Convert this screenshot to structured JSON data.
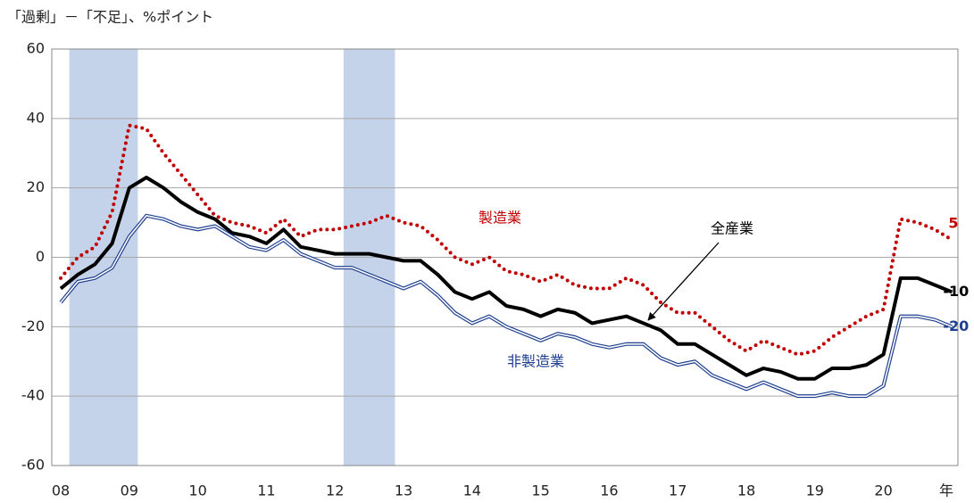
{
  "chart_data": {
    "type": "line",
    "axis_title": "「過剰」－「不足」、%ポイント",
    "x_unit": "年",
    "categories": [
      "08",
      null,
      null,
      null,
      "09",
      null,
      null,
      null,
      "10",
      null,
      null,
      null,
      "11",
      null,
      null,
      null,
      "12",
      null,
      null,
      null,
      "13",
      null,
      null,
      null,
      "14",
      null,
      null,
      null,
      "15",
      null,
      null,
      null,
      "16",
      null,
      null,
      null,
      "17",
      null,
      null,
      null,
      "18",
      null,
      null,
      null,
      "19",
      null,
      null,
      null,
      "20",
      null,
      null,
      null,
      null
    ],
    "shading": [
      [
        0.5,
        4.5
      ],
      [
        16.5,
        19.5
      ]
    ],
    "shading_color": "#c5d3ea",
    "series": [
      {
        "name": "製造業",
        "color": "#c00000",
        "style": "dotted",
        "values": [
          -6,
          0,
          3,
          13,
          38,
          37,
          30,
          24,
          18,
          12,
          10,
          9,
          7,
          11,
          6,
          8,
          8,
          9,
          10,
          12,
          10,
          9,
          5,
          0,
          -2,
          0,
          -4,
          -5,
          -7,
          -5,
          -8,
          -9,
          -9,
          -6,
          -8,
          -13,
          -16,
          -16,
          -20,
          -24,
          -27,
          -24,
          -26,
          -28,
          -27,
          -23,
          -20,
          -17,
          -15,
          11,
          10,
          8,
          5
        ]
      },
      {
        "name": "全産業",
        "color": "#000000",
        "style": "solid",
        "values": [
          -9,
          -5,
          -2,
          4,
          20,
          23,
          20,
          16,
          13,
          11,
          7,
          6,
          4,
          8,
          3,
          2,
          1,
          1,
          1,
          0,
          -1,
          -1,
          -5,
          -10,
          -12,
          -10,
          -14,
          -15,
          -17,
          -15,
          -16,
          -19,
          -18,
          -17,
          -19,
          -21,
          -25,
          -25,
          -28,
          -31,
          -34,
          -32,
          -33,
          -35,
          -35,
          -32,
          -32,
          -31,
          -28,
          -6,
          -6,
          -8,
          -10
        ]
      },
      {
        "name": "非製造業",
        "color": "#1f3f8f",
        "style": "double",
        "values": [
          -13,
          -7,
          -6,
          -3,
          6,
          12,
          11,
          9,
          8,
          9,
          6,
          3,
          2,
          5,
          1,
          -1,
          -3,
          -3,
          -5,
          -7,
          -9,
          -7,
          -11,
          -16,
          -19,
          -17,
          -20,
          -22,
          -24,
          -22,
          -23,
          -25,
          -26,
          -25,
          -25,
          -29,
          -31,
          -30,
          -34,
          -36,
          -38,
          -36,
          -38,
          -40,
          -40,
          -39,
          -40,
          -40,
          -37,
          -17,
          -17,
          -18,
          -20
        ]
      }
    ],
    "ylim": [
      -60,
      60
    ],
    "yticks": [
      -60,
      -40,
      -20,
      0,
      20,
      40,
      60
    ],
    "grid": true
  }
}
